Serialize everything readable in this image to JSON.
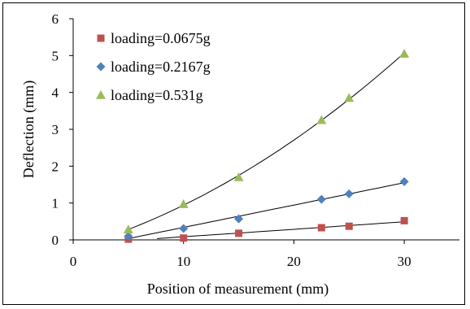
{
  "chart_data": {
    "type": "scatter",
    "title": "",
    "xlabel": "Position of measurement (mm)",
    "ylabel": "Deflection (mm)",
    "xlim": [
      0,
      35
    ],
    "ylim": [
      0,
      6
    ],
    "xticks": [
      0,
      10,
      20,
      30
    ],
    "yticks": [
      0,
      1,
      2,
      3,
      4,
      5,
      6
    ],
    "grid": false,
    "legend_position": "top-left",
    "series": [
      {
        "name": "loading=0.0675g",
        "marker": "square",
        "color": "#c0504d",
        "x": [
          5,
          10,
          15,
          22.5,
          25,
          30
        ],
        "y": [
          0.02,
          0.05,
          0.18,
          0.33,
          0.37,
          0.52
        ],
        "trendline": "linear",
        "trend_x_range": [
          7.6,
          30
        ]
      },
      {
        "name": "loading=0.2167g",
        "marker": "diamond",
        "color": "#4f81bd",
        "x": [
          5,
          10,
          15,
          22.5,
          25,
          30
        ],
        "y": [
          0.1,
          0.31,
          0.57,
          1.1,
          1.25,
          1.58
        ],
        "trendline": "linear",
        "trend_x_range": [
          5,
          30
        ]
      },
      {
        "name": "loading=0.531g",
        "marker": "triangle",
        "color": "#9bbb59",
        "x": [
          5,
          10,
          15,
          22.5,
          25,
          30
        ],
        "y": [
          0.28,
          0.97,
          1.7,
          3.25,
          3.85,
          5.05
        ],
        "trendline": "polynomial",
        "trend_x_range": [
          5,
          30
        ]
      }
    ]
  }
}
